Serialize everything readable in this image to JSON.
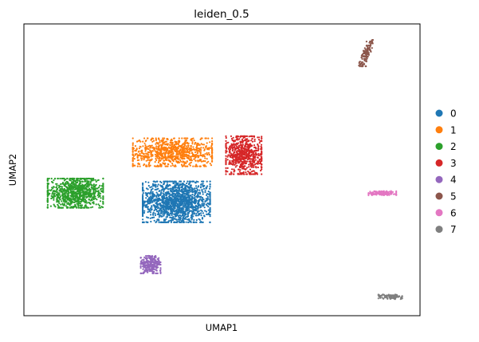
{
  "chart_data": {
    "type": "scatter",
    "title": "leiden_0.5",
    "xlabel": "UMAP1",
    "ylabel": "UMAP2",
    "xlim": [
      0,
      100
    ],
    "ylim": [
      0,
      100
    ],
    "grid": false,
    "ticks": false,
    "legend_position": "right",
    "series": [
      {
        "name": "0",
        "color": "#1f77b4"
      },
      {
        "name": "1",
        "color": "#ff7f0e"
      },
      {
        "name": "2",
        "color": "#2ca02c"
      },
      {
        "name": "3",
        "color": "#d62728"
      },
      {
        "name": "4",
        "color": "#9467bd"
      },
      {
        "name": "5",
        "color": "#8c564b"
      },
      {
        "name": "6",
        "color": "#e377c2"
      },
      {
        "name": "7",
        "color": "#7f7f7f"
      }
    ],
    "clusters": [
      {
        "series": "0",
        "center": [
          38.5,
          39
        ],
        "spread": [
          8.5,
          7
        ],
        "count": 1500
      },
      {
        "series": "1",
        "center": [
          37.5,
          56
        ],
        "spread": [
          10,
          4.8
        ],
        "count": 900
      },
      {
        "series": "2",
        "center": [
          13,
          42
        ],
        "spread": [
          7,
          5
        ],
        "count": 900
      },
      {
        "series": "3",
        "center": [
          55.5,
          55
        ],
        "spread": [
          4.5,
          6.5
        ],
        "count": 700
      },
      {
        "series": "4",
        "center": [
          32,
          17.5
        ],
        "spread": [
          2.5,
          3
        ],
        "count": 250
      },
      {
        "series": "5",
        "center": [
          86.5,
          90
        ],
        "spread": [
          1.0,
          4.5
        ],
        "count": 120
      },
      {
        "series": "6",
        "center": [
          90.5,
          42
        ],
        "spread": [
          3.5,
          0.7
        ],
        "count": 140
      },
      {
        "series": "7",
        "center": [
          92.5,
          6.5
        ],
        "spread": [
          3,
          0.8
        ],
        "count": 120
      }
    ]
  }
}
